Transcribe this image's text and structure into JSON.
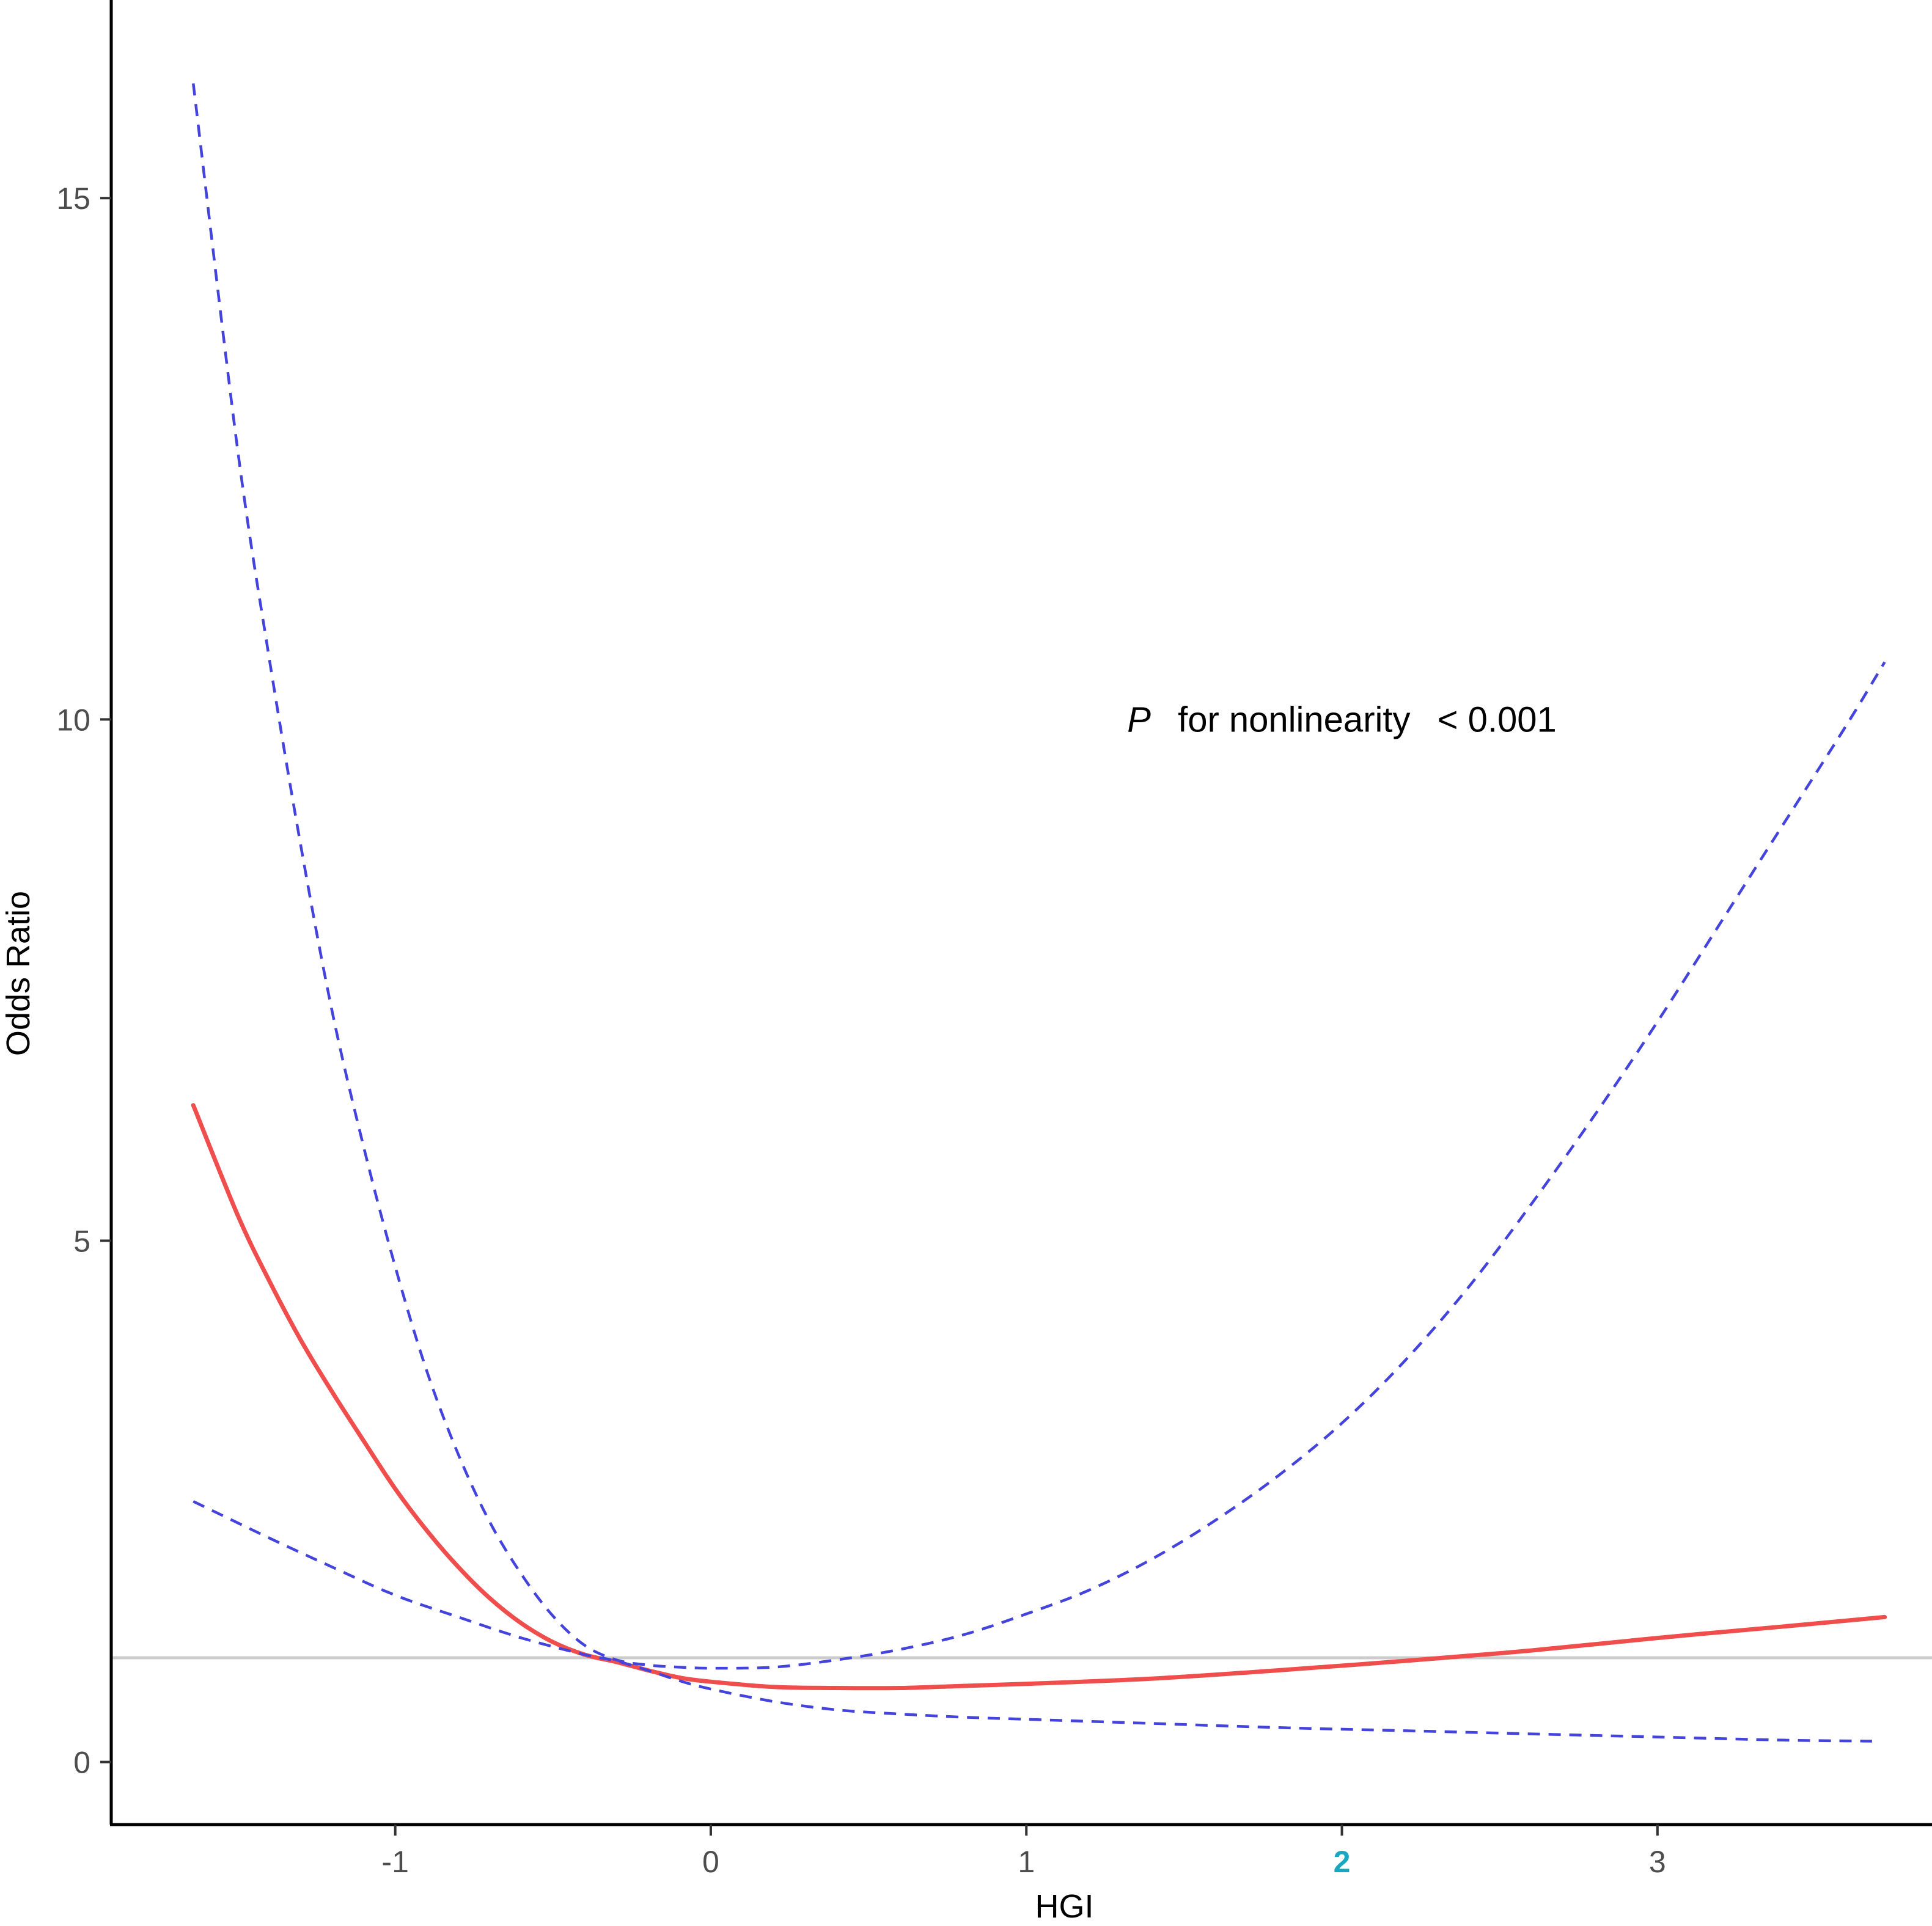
{
  "chart_data": {
    "type": "line",
    "xlabel": "HGI",
    "ylabel": "Odds Ratio",
    "xlim": [
      -1.9,
      3.87
    ],
    "ylim": [
      -0.6,
      16.9
    ],
    "x_ticks": [
      "-1",
      "0",
      "1",
      "2",
      "3"
    ],
    "x_tick_values": [
      -1,
      0,
      1,
      2,
      3
    ],
    "highlighted_x_tick": "2",
    "y_ticks": [
      "0",
      "5",
      "10",
      "15"
    ],
    "y_tick_values": [
      0,
      5,
      10,
      15
    ],
    "reference_line": {
      "y": 1,
      "color": "#cccccc"
    },
    "annotation": {
      "p": "P",
      "text": "for nonlinearity",
      "value": "< 0.001",
      "x": 2.0,
      "y": 10.0
    },
    "grid": false,
    "series": [
      {
        "role": "estimate",
        "style": "solid",
        "color": "#f04d4d",
        "x": [
          -1.64,
          -1.5,
          -1.4,
          -1.3,
          -1.2,
          -1.1,
          -1.0,
          -0.9,
          -0.8,
          -0.7,
          -0.6,
          -0.5,
          -0.4,
          -0.3,
          -0.2,
          -0.1,
          0.0,
          0.2,
          0.4,
          0.6,
          0.8,
          1.0,
          1.4,
          1.8,
          2.2,
          2.6,
          3.0,
          3.4,
          3.72
        ],
        "y": [
          6.3,
          5.25,
          4.62,
          4.05,
          3.55,
          3.08,
          2.62,
          2.22,
          1.87,
          1.57,
          1.33,
          1.15,
          1.03,
          0.96,
          0.88,
          0.81,
          0.77,
          0.72,
          0.71,
          0.71,
          0.73,
          0.75,
          0.8,
          0.88,
          0.97,
          1.07,
          1.19,
          1.3,
          1.39
        ]
      },
      {
        "role": "upper-ci",
        "style": "dashed",
        "color": "#4444dd",
        "x": [
          -1.64,
          -1.5,
          -1.4,
          -1.3,
          -1.2,
          -1.1,
          -1.0,
          -0.9,
          -0.8,
          -0.7,
          -0.6,
          -0.5,
          -0.4,
          -0.3,
          -0.2,
          -0.1,
          0.0,
          0.2,
          0.4,
          0.6,
          0.8,
          1.0,
          1.2,
          1.4,
          1.6,
          1.8,
          2.0,
          2.2,
          2.4,
          2.6,
          2.8,
          3.0,
          3.2,
          3.4,
          3.6,
          3.72
        ],
        "y": [
          16.1,
          12.6,
          10.6,
          8.8,
          7.2,
          5.9,
          4.75,
          3.75,
          2.95,
          2.3,
          1.8,
          1.4,
          1.12,
          0.98,
          0.93,
          0.91,
          0.9,
          0.91,
          0.98,
          1.08,
          1.22,
          1.42,
          1.65,
          1.95,
          2.32,
          2.75,
          3.25,
          3.85,
          4.55,
          5.35,
          6.2,
          7.1,
          8.05,
          9.0,
          9.95,
          10.55
        ]
      },
      {
        "role": "lower-ci",
        "style": "dashed",
        "color": "#4444dd",
        "x": [
          -1.64,
          -1.4,
          -1.2,
          -1.0,
          -0.8,
          -0.6,
          -0.4,
          -0.3,
          -0.2,
          -0.1,
          0.0,
          0.2,
          0.4,
          0.6,
          0.8,
          1.0,
          1.4,
          1.8,
          2.2,
          2.6,
          3.0,
          3.4,
          3.68
        ],
        "y": [
          2.5,
          2.15,
          1.87,
          1.6,
          1.39,
          1.19,
          1.03,
          0.97,
          0.88,
          0.78,
          0.7,
          0.58,
          0.5,
          0.46,
          0.43,
          0.41,
          0.37,
          0.33,
          0.3,
          0.27,
          0.24,
          0.21,
          0.2
        ]
      }
    ]
  }
}
